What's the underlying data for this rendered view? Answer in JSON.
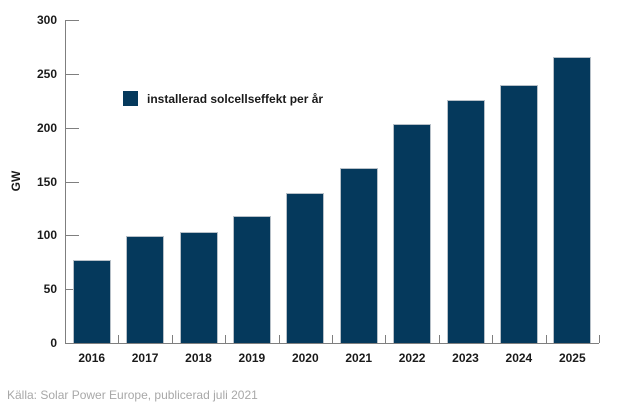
{
  "chart_data": {
    "type": "bar",
    "categories": [
      "2016",
      "2017",
      "2018",
      "2019",
      "2020",
      "2021",
      "2022",
      "2023",
      "2024",
      "2025"
    ],
    "values": [
      77,
      99,
      103,
      118,
      139,
      163,
      203,
      226,
      240,
      266
    ],
    "title": "",
    "xlabel": "",
    "ylabel": "GW",
    "ylim": [
      0,
      300
    ],
    "yticks": [
      0,
      50,
      100,
      150,
      200,
      250,
      300
    ],
    "grid": false,
    "legend": {
      "label": "installerad solcellseffekt per år",
      "position": "inside-top-left"
    },
    "bar_color": "#05395c",
    "bar_border_color": "#b7c0c8",
    "axis_color": "#7f7f7f"
  },
  "source_note": "Källa: Solar Power Europe, publicerad juli 2021"
}
